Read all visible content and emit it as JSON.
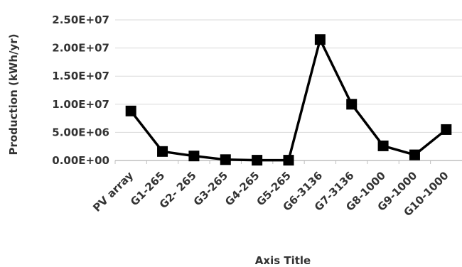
{
  "chart_data": {
    "type": "line",
    "categories": [
      "PV array",
      "G1-265",
      "G2- 265",
      "G3-265",
      "G4-265",
      "G5-265",
      "G6-3136",
      "G7-3136",
      "G8-1000",
      "G9-1000",
      "G10-1000"
    ],
    "series": [
      {
        "values": [
          8800000,
          1600000,
          800000,
          150000,
          50000,
          50000,
          21500000,
          10000000,
          2600000,
          1000000,
          5500000
        ]
      }
    ],
    "ylabel": "Production (kWh/yr)",
    "xlabel": "Axis Title",
    "ylim": [
      0,
      25000000
    ],
    "yticks": [
      0,
      5000000,
      10000000,
      15000000,
      20000000,
      25000000
    ],
    "ytick_labels": [
      "0.00E+00",
      "5.00E+06",
      "1.00E+07",
      "1.50E+07",
      "2.00E+07",
      "2.50E+07"
    ],
    "grid": true,
    "legend": "none",
    "colors": {
      "line": "#000000",
      "marker": "#000000",
      "grid": "#d9d9d9",
      "text": "#333333"
    }
  }
}
